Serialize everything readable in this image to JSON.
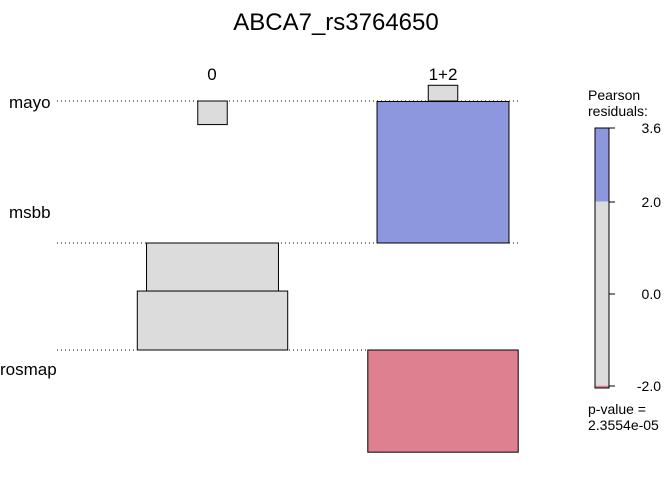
{
  "chart_data": {
    "type": "association",
    "title": "ABCA7_rs3764650",
    "columns": [
      "0",
      "1+2"
    ],
    "rows": [
      "mayo",
      "msbb",
      "rosmap"
    ],
    "cells": [
      {
        "row": "mayo",
        "col": "0",
        "residual": -0.6,
        "expected": 1.0,
        "sign": "neg"
      },
      {
        "row": "mayo",
        "col": "1+2",
        "residual": 0.4,
        "expected": 1.0,
        "sign": "pos"
      },
      {
        "row": "msbb",
        "col": "0",
        "residual": -1.9,
        "expected": 20.0,
        "sign": "neg"
      },
      {
        "row": "msbb",
        "col": "1+2",
        "residual": 3.6,
        "expected": 20.0,
        "sign": "pos"
      },
      {
        "row": "rosmap",
        "col": "0",
        "residual": 1.5,
        "expected": 26.0,
        "sign": "pos"
      },
      {
        "row": "rosmap",
        "col": "1+2",
        "residual": -2.6,
        "expected": 26.0,
        "sign": "neg"
      }
    ],
    "legend": {
      "title_line1": "Pearson",
      "title_line2": "residuals:",
      "ticks": [
        "3.6",
        "2.0",
        "0.0",
        "-2.0"
      ],
      "tick_values": [
        3.6,
        2.0,
        0.0,
        -2.0
      ],
      "range": [
        -2.05,
        3.6
      ],
      "shade_threshold": 2.0,
      "pvalue_line1": "p-value =",
      "pvalue_line2": "2.3554e-05"
    },
    "colors": {
      "positive_shaded": "#8d97de",
      "negative_shaded": "#de8090",
      "neutral": "#dcdcdc",
      "border": "#000000"
    }
  }
}
